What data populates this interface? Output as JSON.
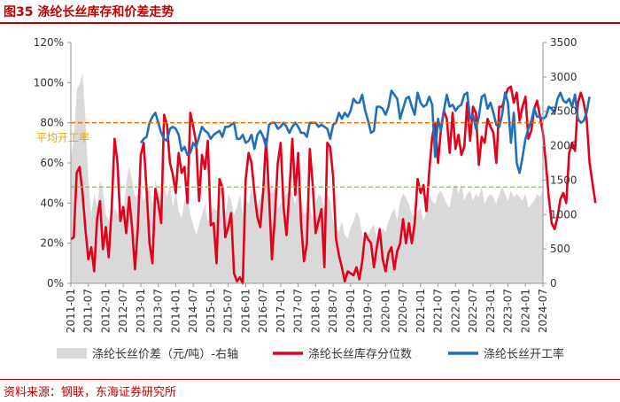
{
  "header": {
    "title": "图35 涤纶长丝库存和价差走势"
  },
  "footer": {
    "source": "资料来源：钢联，东海证券研究所"
  },
  "chart_data": {
    "type": "line",
    "title": "图35 涤纶长丝库存和价差走势",
    "x_start": "2011-01",
    "x_tick_labels": [
      "2011-01",
      "2011-07",
      "2012-01",
      "2012-07",
      "2013-01",
      "2013-07",
      "2014-01",
      "2014-07",
      "2015-01",
      "2015-07",
      "2016-01",
      "2016-07",
      "2017-01",
      "2017-07",
      "2018-01",
      "2018-07",
      "2019-01",
      "2019-07",
      "2020-01",
      "2020-07",
      "2021-01",
      "2021-07",
      "2022-01",
      "2022-07",
      "2023-01",
      "2023-07",
      "2024-01",
      "2024-07"
    ],
    "y_left": {
      "min": 0,
      "max": 120,
      "unit": "%",
      "ticks": [
        "0%",
        "20%",
        "40%",
        "60%",
        "80%",
        "100%",
        "120%"
      ]
    },
    "y_right": {
      "min": 0,
      "max": 3500,
      "ticks": [
        "0",
        "500",
        "1000",
        "1500",
        "2000",
        "2500",
        "3000",
        "3500"
      ]
    },
    "annotation": {
      "label": "平均开工率",
      "value": 80,
      "axis": "left"
    },
    "reference_lines": [
      {
        "axis": "left",
        "value": 80,
        "color": "#e46c0a",
        "style": "dashed"
      },
      {
        "axis": "left",
        "value": 48,
        "color": "#92d050",
        "style": "dashed"
      }
    ],
    "series": [
      {
        "name": "涤纶长丝价差（元/吨）-右轴",
        "kind": "area",
        "axis": "right",
        "color": "#d9d9d9",
        "values": [
          1800,
          2100,
          2800,
          2900,
          3050,
          2400,
          1500,
          1000,
          1300,
          1100,
          1500,
          1350,
          1000,
          900,
          800,
          1100,
          1000,
          1150,
          1000,
          1450,
          1700,
          1500,
          1250,
          1300,
          1350,
          1200,
          1300,
          1400,
          1150,
          1500,
          1350,
          1250,
          1400,
          1250,
          1450,
          1100,
          1350,
          1050,
          950,
          1200,
          1250,
          1000,
          850,
          700,
          850,
          1000,
          1150,
          900,
          950,
          1100,
          1050,
          1250,
          1100,
          950,
          1300,
          1200,
          1000,
          1100,
          1300,
          1000,
          1250,
          1150,
          1400,
          1200,
          1150,
          1250,
          1350,
          1550,
          1350,
          1300,
          1400,
          1100,
          1150,
          1250,
          1300,
          1350,
          1300,
          1150,
          1450,
          1250,
          1000,
          1050,
          1100,
          950,
          1150,
          1300,
          1250,
          1100,
          1300,
          1200,
          900,
          800,
          750,
          900,
          700,
          650,
          800,
          900,
          1050,
          950,
          700,
          550,
          700,
          800,
          850,
          650,
          700,
          800,
          750,
          900,
          1000,
          1100,
          900,
          1200,
          1300,
          1250,
          1150,
          1000,
          950,
          1050,
          1100,
          900,
          1050,
          1300,
          1200,
          1150,
          1300,
          1350,
          1250,
          1150,
          1100,
          1350,
          1450,
          1300,
          1450,
          1200,
          1300,
          1350,
          1200,
          1300,
          1250,
          1400,
          1150,
          1250,
          1300,
          1250,
          1150,
          1300,
          1400,
          1300,
          1200,
          1350,
          1250,
          1300,
          1250,
          1200,
          1300,
          1100,
          1150,
          1200,
          1300,
          1250,
          1350
        ]
      },
      {
        "name": "涤纶长丝库存分位数",
        "kind": "line",
        "axis": "left",
        "color": "#e3001b",
        "values": [
          22,
          23,
          55,
          58,
          45,
          27,
          12,
          18,
          6,
          32,
          41,
          17,
          28,
          13,
          37,
          72,
          60,
          31,
          38,
          25,
          43,
          28,
          7,
          28,
          64,
          70,
          46,
          20,
          10,
          47,
          40,
          30,
          84,
          79,
          60,
          54,
          45,
          65,
          55,
          58,
          40,
          85,
          78,
          70,
          41,
          64,
          57,
          71,
          29,
          30,
          10,
          52,
          48,
          23,
          28,
          35,
          5,
          1,
          3,
          0,
          52,
          65,
          60,
          45,
          33,
          28,
          46,
          72,
          44,
          12,
          33,
          60,
          70,
          38,
          24,
          46,
          72,
          44,
          65,
          30,
          11,
          20,
          67,
          49,
          25,
          31,
          37,
          8,
          70,
          68,
          53,
          22,
          14,
          8,
          1,
          6,
          5,
          4,
          8,
          2,
          11,
          25,
          22,
          20,
          8,
          18,
          27,
          12,
          6,
          15,
          18,
          7,
          16,
          20,
          32,
          20,
          30,
          20,
          30,
          52,
          45,
          49,
          36,
          56,
          73,
          80,
          60,
          77,
          86,
          82,
          65,
          85,
          67,
          74,
          64,
          68,
          90,
          71,
          88,
          85,
          59,
          73,
          70,
          82,
          78,
          75,
          60,
          88,
          88,
          93,
          97,
          98,
          90,
          95,
          81,
          88,
          93,
          72,
          76,
          87,
          91,
          83,
          75,
          60,
          43,
          30,
          27,
          33,
          42,
          45,
          40,
          65,
          70,
          66,
          90,
          95,
          90,
          82,
          60,
          50,
          40
        ]
      },
      {
        "name": "涤纶长丝开工率",
        "kind": "line",
        "axis": "left",
        "color": "#1f6fbf",
        "values": [
          null,
          null,
          null,
          null,
          null,
          null,
          null,
          null,
          null,
          null,
          null,
          null,
          null,
          null,
          null,
          null,
          null,
          null,
          null,
          null,
          null,
          null,
          null,
          null,
          70,
          72,
          73,
          80,
          83,
          85,
          80,
          75,
          72,
          71,
          77,
          78,
          77,
          74,
          66,
          68,
          64,
          65,
          70,
          68,
          73,
          78,
          76,
          75,
          72,
          74,
          75,
          76,
          73,
          78,
          78,
          79,
          80,
          72,
          72,
          74,
          70,
          71,
          74,
          67,
          74,
          76,
          73,
          68,
          79,
          80,
          80,
          77,
          78,
          80,
          78,
          75,
          78,
          80,
          78,
          75,
          75,
          73,
          80,
          80,
          80,
          78,
          79,
          78,
          77,
          72,
          79,
          80,
          85,
          82,
          85,
          83,
          86,
          92,
          90,
          90,
          94,
          86,
          81,
          75,
          76,
          88,
          88,
          87,
          84,
          88,
          96,
          94,
          92,
          82,
          87,
          92,
          93,
          88,
          84,
          95,
          90,
          88,
          89,
          93,
          89,
          63,
          82,
          76,
          86,
          94,
          88,
          89,
          86,
          88,
          89,
          94,
          95,
          82,
          84,
          77,
          83,
          93,
          94,
          87,
          90,
          85,
          79,
          78,
          84,
          95,
          90,
          70,
          85,
          60,
          55,
          63,
          72,
          77,
          81,
          87,
          83,
          83,
          82,
          83,
          88,
          87,
          85,
          92,
          95,
          91,
          90,
          92,
          88,
          94,
          82,
          80,
          81,
          85,
          93
        ]
      }
    ]
  }
}
